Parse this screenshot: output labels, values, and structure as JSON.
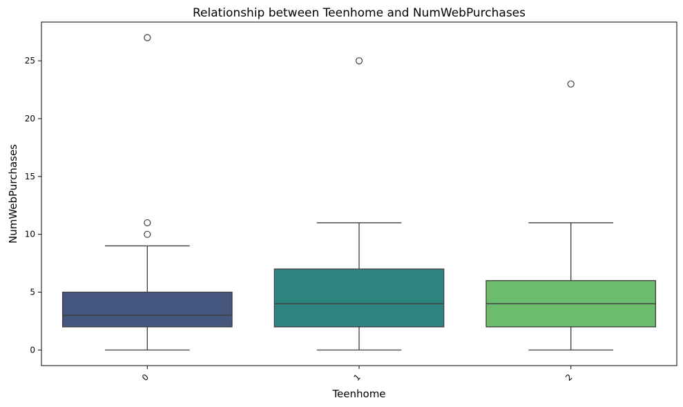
{
  "chart_data": {
    "type": "box",
    "title": "Relationship between Teenhome and NumWebPurchases",
    "xlabel": "Teenhome",
    "ylabel": "NumWebPurchases",
    "categories": [
      "0",
      "1",
      "2"
    ],
    "ylim": [
      -1.35,
      28.35
    ],
    "yticks": [
      0,
      5,
      10,
      15,
      20,
      25
    ],
    "tick_rotation": -45,
    "boxes": [
      {
        "category": "0",
        "whisker_low": 0,
        "q1": 2,
        "median": 3,
        "q3": 5,
        "whisker_high": 9,
        "outliers": [
          10,
          11,
          27
        ],
        "color": "#46577F"
      },
      {
        "category": "1",
        "whisker_low": 0,
        "q1": 2,
        "median": 4,
        "q3": 7,
        "whisker_high": 11,
        "outliers": [
          25
        ],
        "color": "#2E847E"
      },
      {
        "category": "2",
        "whisker_low": 0,
        "q1": 2,
        "median": 4,
        "q3": 6,
        "whisker_high": 11,
        "outliers": [
          23
        ],
        "color": "#6BBC6D"
      }
    ],
    "line_color": "#3c3c3c",
    "grid": false,
    "legend": "none"
  }
}
